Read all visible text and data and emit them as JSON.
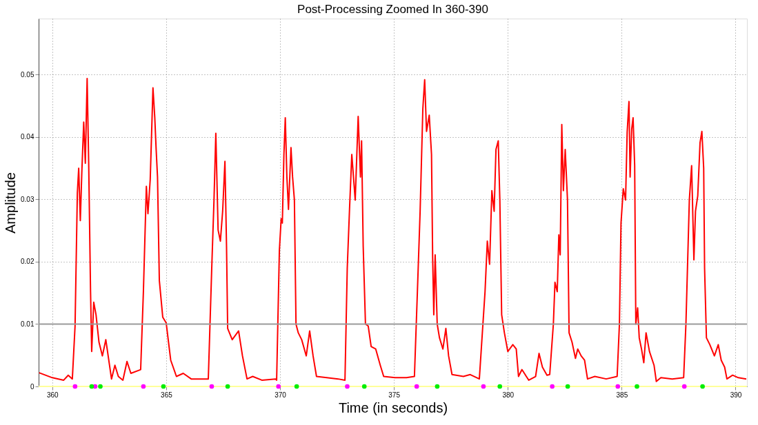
{
  "chart_data": {
    "type": "line",
    "title": "Post-Processing Zoomed In 360-390",
    "xlabel": "Time (in seconds)",
    "ylabel": "Amplitude",
    "xlim": [
      359.4,
      390.5
    ],
    "ylim": [
      0,
      0.059
    ],
    "xticks": [
      360,
      365,
      370,
      375,
      380,
      385,
      390
    ],
    "yticks": [
      0,
      0.01,
      0.02,
      0.03,
      0.04,
      0.05
    ],
    "grid": true,
    "ref_lines": [
      {
        "axis": "y",
        "value": 0.01,
        "color": "#999999",
        "line_style": "solid"
      }
    ],
    "series": [
      {
        "type": "line",
        "color": "#ffff99",
        "marker": "none",
        "x": [
          359.4,
          390.5
        ],
        "values": [
          0,
          0
        ]
      },
      {
        "color": "#ff0000",
        "marker": "none",
        "line_style": "solid",
        "x": [
          359.42,
          360.0,
          360.5,
          360.7,
          360.88,
          361.0,
          361.1,
          361.16,
          361.23,
          361.3,
          361.38,
          361.45,
          361.53,
          361.6,
          361.68,
          361.73,
          361.82,
          361.92,
          362.05,
          362.2,
          362.35,
          362.6,
          362.75,
          362.9,
          363.1,
          363.28,
          363.45,
          363.88,
          364.0,
          364.13,
          364.2,
          364.3,
          364.42,
          364.5,
          364.56,
          364.62,
          364.7,
          364.85,
          365.0,
          365.2,
          365.45,
          365.75,
          366.1,
          366.85,
          367.0,
          367.1,
          367.18,
          367.28,
          367.38,
          367.48,
          367.58,
          367.65,
          367.7,
          367.9,
          368.18,
          368.35,
          368.55,
          368.8,
          369.2,
          369.8,
          369.85,
          369.97,
          370.05,
          370.1,
          370.17,
          370.23,
          370.3,
          370.37,
          370.48,
          370.55,
          370.63,
          370.7,
          370.8,
          370.95,
          371.15,
          371.3,
          371.45,
          371.6,
          372.05,
          372.55,
          372.85,
          372.95,
          373.05,
          373.15,
          373.3,
          373.43,
          373.53,
          373.58,
          373.65,
          373.75,
          373.87,
          374.0,
          374.2,
          374.4,
          374.55,
          375.05,
          375.55,
          375.9,
          376.03,
          376.15,
          376.27,
          376.35,
          376.43,
          376.55,
          376.65,
          376.7,
          376.75,
          376.81,
          376.9,
          377.0,
          377.15,
          377.28,
          377.4,
          377.55,
          378.05,
          378.35,
          378.75,
          379.0,
          379.1,
          379.2,
          379.3,
          379.4,
          379.48,
          379.58,
          379.65,
          379.73,
          379.85,
          380.0,
          380.22,
          380.37,
          380.47,
          380.62,
          380.92,
          381.22,
          381.37,
          381.52,
          381.72,
          381.84,
          382.0,
          382.07,
          382.17,
          382.24,
          382.3,
          382.37,
          382.44,
          382.52,
          382.62,
          382.69,
          382.82,
          382.97,
          383.07,
          383.22,
          383.37,
          383.5,
          383.82,
          384.32,
          384.8,
          384.9,
          384.97,
          385.07,
          385.17,
          385.24,
          385.32,
          385.37,
          385.44,
          385.5,
          385.57,
          385.62,
          385.7,
          385.77,
          385.87,
          385.97,
          386.07,
          386.22,
          386.42,
          386.52,
          386.72,
          387.22,
          387.72,
          387.82,
          387.97,
          388.07,
          388.17,
          388.24,
          388.34,
          388.44,
          388.52,
          388.6,
          388.64,
          388.72,
          388.87,
          389.07,
          389.24,
          389.37,
          389.52,
          389.62,
          389.87,
          390.12,
          390.47
        ],
        "values": [
          0.0022,
          0.0014,
          0.001,
          0.0018,
          0.0012,
          0.0097,
          0.031,
          0.035,
          0.0266,
          0.0347,
          0.0424,
          0.0358,
          0.0494,
          0.0354,
          0.0152,
          0.0056,
          0.0135,
          0.0115,
          0.0071,
          0.0049,
          0.0075,
          0.0012,
          0.0034,
          0.0016,
          0.001,
          0.004,
          0.0021,
          0.0027,
          0.0152,
          0.0321,
          0.0277,
          0.0332,
          0.0479,
          0.0431,
          0.038,
          0.0336,
          0.017,
          0.0111,
          0.0102,
          0.0042,
          0.0016,
          0.0021,
          0.0012,
          0.0012,
          0.0189,
          0.0299,
          0.0406,
          0.0251,
          0.0233,
          0.0281,
          0.0361,
          0.0225,
          0.0093,
          0.0075,
          0.0089,
          0.0049,
          0.0012,
          0.0016,
          0.001,
          0.0012,
          0.001,
          0.0218,
          0.0269,
          0.0262,
          0.0372,
          0.0431,
          0.0336,
          0.0284,
          0.0383,
          0.0336,
          0.0299,
          0.01,
          0.0086,
          0.0075,
          0.0049,
          0.0089,
          0.0049,
          0.0016,
          0.0014,
          0.0012,
          0.001,
          0.0189,
          0.0284,
          0.0372,
          0.0299,
          0.0433,
          0.0336,
          0.0394,
          0.0225,
          0.01,
          0.0097,
          0.0064,
          0.006,
          0.0034,
          0.0016,
          0.0014,
          0.0014,
          0.0016,
          0.0152,
          0.0281,
          0.0446,
          0.0492,
          0.0409,
          0.0435,
          0.0372,
          0.0207,
          0.0115,
          0.0211,
          0.01,
          0.0078,
          0.006,
          0.0093,
          0.0049,
          0.0019,
          0.0016,
          0.0019,
          0.0012,
          0.0152,
          0.0233,
          0.0196,
          0.0314,
          0.0281,
          0.038,
          0.0394,
          0.0299,
          0.0115,
          0.0086,
          0.0056,
          0.0067,
          0.006,
          0.0016,
          0.0027,
          0.001,
          0.0016,
          0.0053,
          0.0031,
          0.0018,
          0.0019,
          0.01,
          0.0167,
          0.0152,
          0.0243,
          0.0211,
          0.042,
          0.0314,
          0.038,
          0.0299,
          0.0086,
          0.0071,
          0.0045,
          0.006,
          0.0049,
          0.0042,
          0.0012,
          0.0016,
          0.0012,
          0.0016,
          0.01,
          0.0262,
          0.0317,
          0.0299,
          0.0408,
          0.0457,
          0.0336,
          0.0413,
          0.0431,
          0.0354,
          0.01,
          0.0126,
          0.0078,
          0.006,
          0.0038,
          0.0086,
          0.0056,
          0.0034,
          0.0008,
          0.0014,
          0.0012,
          0.0014,
          0.01,
          0.0299,
          0.0354,
          0.0203,
          0.0281,
          0.0306,
          0.0391,
          0.0409,
          0.035,
          0.0189,
          0.0078,
          0.0067,
          0.0049,
          0.0067,
          0.0042,
          0.0031,
          0.0012,
          0.0018,
          0.0014,
          0.0012
        ]
      },
      {
        "type": "scatter",
        "color": "#ff00ff",
        "marker": "circle",
        "x": [
          361.0,
          361.88,
          364.0,
          367.0,
          369.93,
          372.95,
          376.0,
          378.93,
          381.95,
          384.83,
          387.75
        ],
        "values": [
          0,
          0,
          0,
          0,
          0,
          0,
          0,
          0,
          0,
          0,
          0
        ]
      },
      {
        "type": "scatter",
        "color": "#00ee00",
        "marker": "circle",
        "x": [
          361.73,
          362.11,
          364.88,
          367.7,
          370.73,
          373.7,
          376.9,
          379.65,
          382.63,
          385.67,
          388.55
        ],
        "values": [
          0,
          0,
          0,
          0,
          0,
          0,
          0,
          0,
          0,
          0,
          0
        ]
      }
    ]
  }
}
